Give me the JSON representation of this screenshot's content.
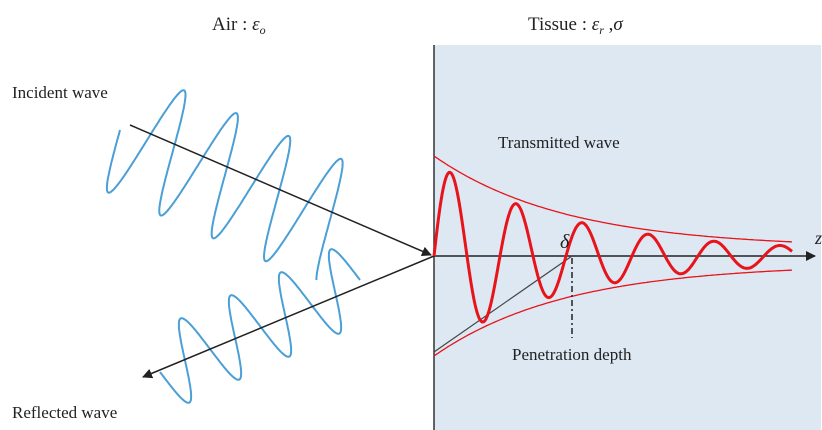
{
  "labels": {
    "air_text": "Air : ",
    "air_symbol": "ε",
    "air_sub": "o",
    "tissue_text": "Tissue : ",
    "tissue_eps": "ε",
    "tissue_sub": "r",
    "tissue_sep": " ,",
    "tissue_sigma": "σ",
    "incident": "Incident wave",
    "reflected": "Reflected wave",
    "transmitted": "Transmitted wave",
    "penetration": "Penetration depth",
    "delta": "δ",
    "axis_end": "z"
  },
  "colors": {
    "incident_wave": "#4a9fd6",
    "transmitted_wave": "#e8141b",
    "envelope": "#e8141b",
    "tissue_fill": "#dde8f2",
    "axis": "#222222"
  }
}
